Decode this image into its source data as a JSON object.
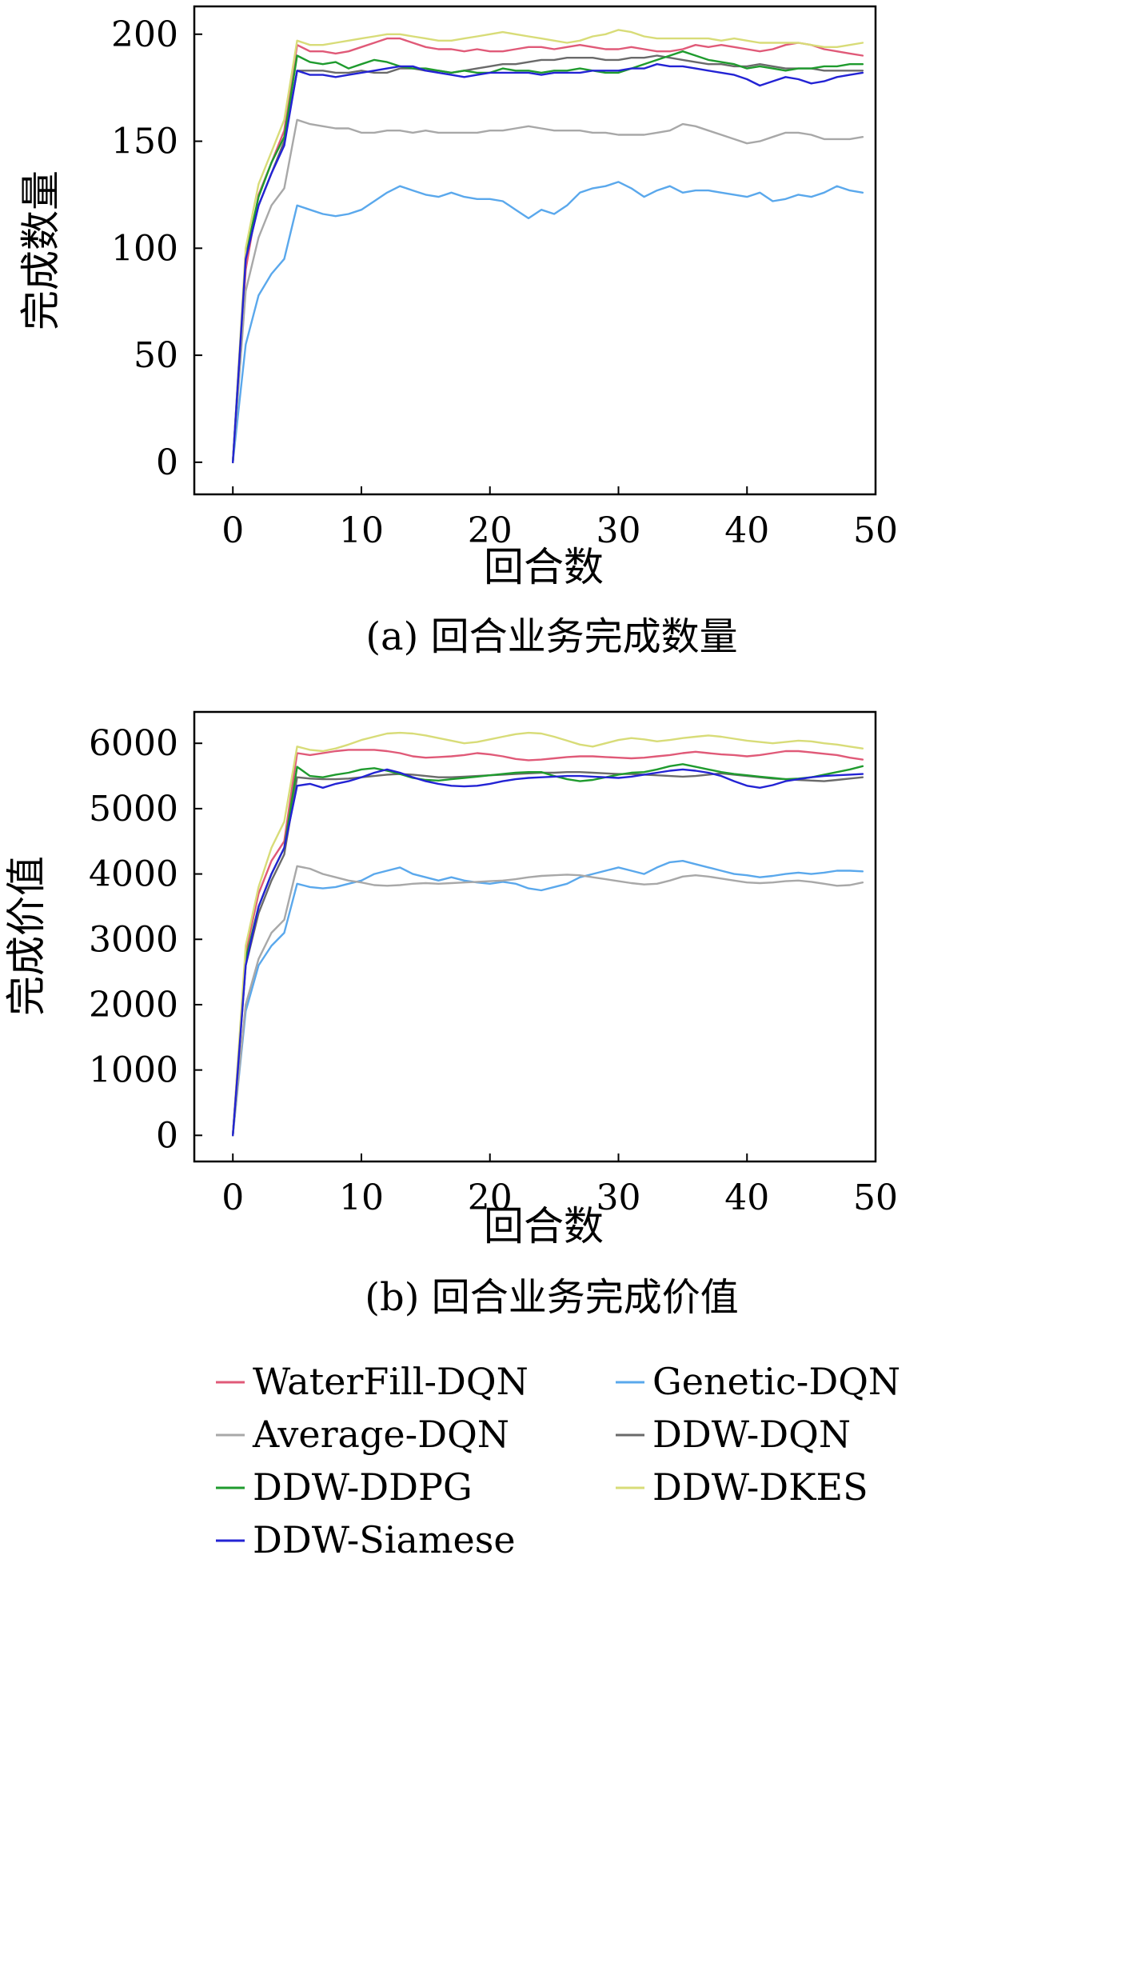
{
  "legend": {
    "items": [
      {
        "label": "WaterFill-DQN",
        "color": "#e05a78"
      },
      {
        "label": "Genetic-DQN",
        "color": "#5aa8ec"
      },
      {
        "label": "Average-DQN",
        "color": "#a8a8a8"
      },
      {
        "label": "DDW-DQN",
        "color": "#6a6a6a"
      },
      {
        "label": "DDW-DDPG",
        "color": "#1f9b2e"
      },
      {
        "label": "DDW-DKES",
        "color": "#d8dc78"
      },
      {
        "label": "DDW-Siamese",
        "color": "#2323d4"
      }
    ]
  },
  "chart_data": [
    {
      "type": "line",
      "caption": "(a) 回合业务完成数量",
      "xlabel": "回合数",
      "ylabel": "完成数量",
      "xlim": [
        -3,
        50
      ],
      "ylim": [
        -15,
        213
      ],
      "xticks": [
        0,
        10,
        20,
        30,
        40,
        50
      ],
      "yticks": [
        0,
        50,
        100,
        150,
        200
      ],
      "grid": false,
      "x": [
        0,
        1,
        2,
        3,
        4,
        5,
        6,
        7,
        8,
        9,
        10,
        11,
        12,
        13,
        14,
        15,
        16,
        17,
        18,
        19,
        20,
        21,
        22,
        23,
        24,
        25,
        26,
        27,
        28,
        29,
        30,
        31,
        32,
        33,
        34,
        35,
        36,
        37,
        38,
        39,
        40,
        41,
        42,
        43,
        44,
        45,
        46,
        47,
        48,
        49
      ],
      "series": [
        {
          "name": "WaterFill-DQN",
          "values": [
            0,
            90,
            125,
            140,
            155,
            195,
            192,
            192,
            191,
            192,
            194,
            196,
            198,
            198,
            196,
            194,
            193,
            193,
            192,
            193,
            192,
            192,
            193,
            194,
            194,
            193,
            194,
            195,
            194,
            193,
            193,
            194,
            193,
            192,
            192,
            193,
            195,
            194,
            195,
            194,
            193,
            192,
            193,
            195,
            196,
            195,
            193,
            192,
            191,
            190
          ]
        },
        {
          "name": "Genetic-DQN",
          "values": [
            0,
            55,
            78,
            88,
            95,
            120,
            118,
            116,
            115,
            116,
            118,
            122,
            126,
            129,
            127,
            125,
            124,
            126,
            124,
            123,
            123,
            122,
            118,
            114,
            118,
            116,
            120,
            126,
            128,
            129,
            131,
            128,
            124,
            127,
            129,
            126,
            127,
            127,
            126,
            125,
            124,
            126,
            122,
            123,
            125,
            124,
            126,
            129,
            127,
            126
          ]
        },
        {
          "name": "Average-DQN",
          "values": [
            0,
            80,
            105,
            120,
            128,
            160,
            158,
            157,
            156,
            156,
            154,
            154,
            155,
            155,
            154,
            155,
            154,
            154,
            154,
            154,
            155,
            155,
            156,
            157,
            156,
            155,
            155,
            155,
            154,
            154,
            153,
            153,
            153,
            154,
            155,
            158,
            157,
            155,
            153,
            151,
            149,
            150,
            152,
            154,
            154,
            153,
            151,
            151,
            151,
            152
          ]
        },
        {
          "name": "DDW-DQN",
          "values": [
            0,
            95,
            120,
            135,
            150,
            183,
            183,
            183,
            182,
            182,
            183,
            182,
            182,
            184,
            184,
            183,
            183,
            182,
            183,
            184,
            185,
            186,
            186,
            187,
            188,
            188,
            189,
            189,
            189,
            188,
            188,
            189,
            189,
            190,
            189,
            188,
            187,
            186,
            186,
            185,
            185,
            186,
            185,
            184,
            184,
            184,
            183,
            183,
            183,
            183
          ]
        },
        {
          "name": "DDW-DDPG",
          "values": [
            0,
            97,
            124,
            140,
            152,
            190,
            187,
            186,
            187,
            184,
            186,
            188,
            187,
            185,
            184,
            184,
            183,
            182,
            183,
            182,
            182,
            184,
            183,
            183,
            182,
            183,
            183,
            184,
            183,
            182,
            182,
            184,
            186,
            188,
            190,
            192,
            190,
            188,
            187,
            186,
            184,
            185,
            184,
            183,
            184,
            184,
            185,
            185,
            186,
            186
          ]
        },
        {
          "name": "DDW-DKES",
          "values": [
            0,
            100,
            130,
            145,
            160,
            197,
            195,
            195,
            196,
            197,
            198,
            199,
            200,
            200,
            199,
            198,
            197,
            197,
            198,
            199,
            200,
            201,
            200,
            199,
            198,
            197,
            196,
            197,
            199,
            200,
            202,
            201,
            199,
            198,
            198,
            198,
            198,
            198,
            197,
            198,
            197,
            196,
            196,
            196,
            196,
            195,
            194,
            194,
            195,
            196
          ]
        },
        {
          "name": "DDW-Siamese",
          "values": [
            0,
            95,
            120,
            135,
            148,
            183,
            181,
            181,
            180,
            181,
            182,
            183,
            184,
            185,
            185,
            183,
            182,
            181,
            180,
            181,
            182,
            182,
            182,
            182,
            181,
            182,
            182,
            182,
            183,
            183,
            183,
            184,
            184,
            186,
            185,
            185,
            184,
            183,
            182,
            181,
            179,
            176,
            178,
            180,
            179,
            177,
            178,
            180,
            181,
            182
          ]
        }
      ]
    },
    {
      "type": "line",
      "caption": "(b) 回合业务完成价值",
      "xlabel": "回合数",
      "ylabel": "完成价值",
      "xlim": [
        -3,
        50
      ],
      "ylim": [
        -400,
        6480
      ],
      "xticks": [
        0,
        10,
        20,
        30,
        40,
        50
      ],
      "yticks": [
        0,
        1000,
        2000,
        3000,
        4000,
        5000,
        6000
      ],
      "grid": false,
      "x": [
        0,
        1,
        2,
        3,
        4,
        5,
        6,
        7,
        8,
        9,
        10,
        11,
        12,
        13,
        14,
        15,
        16,
        17,
        18,
        19,
        20,
        21,
        22,
        23,
        24,
        25,
        26,
        27,
        28,
        29,
        30,
        31,
        32,
        33,
        34,
        35,
        36,
        37,
        38,
        39,
        40,
        41,
        42,
        43,
        44,
        45,
        46,
        47,
        48,
        49
      ],
      "series": [
        {
          "name": "WaterFill-DQN",
          "values": [
            0,
            2800,
            3700,
            4200,
            4500,
            5850,
            5820,
            5850,
            5880,
            5900,
            5900,
            5900,
            5880,
            5850,
            5800,
            5780,
            5790,
            5800,
            5820,
            5850,
            5830,
            5800,
            5760,
            5740,
            5750,
            5770,
            5790,
            5800,
            5800,
            5790,
            5780,
            5770,
            5780,
            5800,
            5820,
            5850,
            5870,
            5850,
            5830,
            5820,
            5800,
            5820,
            5850,
            5880,
            5880,
            5860,
            5840,
            5820,
            5780,
            5750
          ]
        },
        {
          "name": "Genetic-DQN",
          "values": [
            0,
            1900,
            2600,
            2900,
            3100,
            3850,
            3800,
            3780,
            3800,
            3850,
            3900,
            4000,
            4050,
            4100,
            4000,
            3950,
            3900,
            3950,
            3900,
            3870,
            3850,
            3880,
            3850,
            3780,
            3750,
            3800,
            3850,
            3950,
            4000,
            4050,
            4100,
            4050,
            4000,
            4100,
            4180,
            4200,
            4150,
            4100,
            4050,
            4000,
            3980,
            3950,
            3970,
            4000,
            4020,
            4000,
            4020,
            4050,
            4050,
            4040
          ]
        },
        {
          "name": "Average-DQN",
          "values": [
            0,
            2000,
            2700,
            3100,
            3300,
            4120,
            4080,
            4000,
            3950,
            3900,
            3870,
            3830,
            3820,
            3830,
            3850,
            3860,
            3850,
            3860,
            3870,
            3880,
            3890,
            3900,
            3920,
            3950,
            3970,
            3980,
            3990,
            3980,
            3950,
            3920,
            3890,
            3860,
            3840,
            3850,
            3900,
            3960,
            3980,
            3960,
            3930,
            3900,
            3870,
            3860,
            3870,
            3890,
            3900,
            3880,
            3850,
            3820,
            3830,
            3870
          ]
        },
        {
          "name": "DDW-DQN",
          "values": [
            0,
            2600,
            3400,
            3900,
            4300,
            5480,
            5460,
            5450,
            5450,
            5460,
            5480,
            5500,
            5520,
            5530,
            5520,
            5500,
            5480,
            5480,
            5490,
            5500,
            5510,
            5520,
            5530,
            5540,
            5550,
            5550,
            5560,
            5560,
            5550,
            5540,
            5530,
            5530,
            5520,
            5510,
            5500,
            5490,
            5500,
            5520,
            5540,
            5520,
            5500,
            5480,
            5460,
            5450,
            5440,
            5430,
            5420,
            5440,
            5460,
            5480
          ]
        },
        {
          "name": "DDW-DDPG",
          "values": [
            0,
            2700,
            3500,
            4000,
            4400,
            5640,
            5500,
            5480,
            5520,
            5550,
            5600,
            5620,
            5580,
            5530,
            5470,
            5440,
            5430,
            5450,
            5470,
            5490,
            5510,
            5530,
            5550,
            5560,
            5560,
            5500,
            5450,
            5420,
            5440,
            5480,
            5520,
            5550,
            5560,
            5600,
            5650,
            5680,
            5640,
            5600,
            5560,
            5530,
            5510,
            5490,
            5470,
            5450,
            5460,
            5480,
            5520,
            5560,
            5600,
            5650
          ]
        },
        {
          "name": "DDW-DKES",
          "values": [
            0,
            2900,
            3800,
            4400,
            4800,
            5950,
            5900,
            5880,
            5920,
            5980,
            6050,
            6100,
            6150,
            6160,
            6150,
            6120,
            6080,
            6040,
            6000,
            6020,
            6060,
            6100,
            6140,
            6160,
            6150,
            6100,
            6040,
            5980,
            5950,
            6000,
            6050,
            6080,
            6060,
            6030,
            6050,
            6080,
            6100,
            6120,
            6100,
            6070,
            6040,
            6020,
            6000,
            6020,
            6040,
            6030,
            6000,
            5980,
            5950,
            5920
          ]
        },
        {
          "name": "DDW-Siamese",
          "values": [
            0,
            2600,
            3500,
            4000,
            4400,
            5350,
            5380,
            5320,
            5380,
            5420,
            5480,
            5550,
            5600,
            5550,
            5480,
            5420,
            5380,
            5350,
            5340,
            5350,
            5380,
            5420,
            5450,
            5470,
            5480,
            5490,
            5500,
            5500,
            5490,
            5480,
            5470,
            5490,
            5520,
            5550,
            5580,
            5600,
            5580,
            5550,
            5500,
            5420,
            5350,
            5320,
            5360,
            5420,
            5450,
            5480,
            5500,
            5510,
            5520,
            5530
          ]
        }
      ]
    }
  ]
}
